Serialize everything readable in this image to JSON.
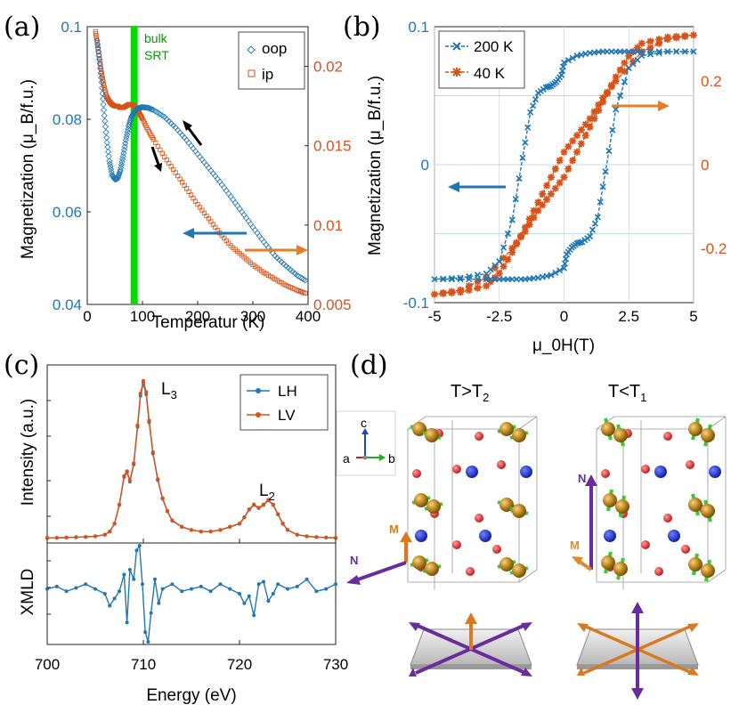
{
  "colors": {
    "blue": "#1f77b4",
    "orange": "#d95319",
    "green": "#00cc00",
    "purple": "#6a2c9c",
    "atom_brown": "#b8860b",
    "atom_red": "#e02020",
    "atom_blue": "#1a2fd0",
    "arrow_green": "#33cc33"
  },
  "panels": {
    "a": {
      "label": "(a)"
    },
    "b": {
      "label": "(b)"
    },
    "c": {
      "label": "(c)"
    },
    "d": {
      "label": "(d)"
    }
  },
  "chart_data": [
    {
      "id": "a",
      "type": "scatter",
      "xlabel": "Temperatur (K)",
      "ylabel_left": "Magnetization (μ_B/f.u.)",
      "xlim": [
        0,
        400
      ],
      "ylim_left": [
        0.04,
        0.1
      ],
      "ylim_right": [
        0.005,
        0.0225
      ],
      "xticks": [
        "0",
        "100",
        "200",
        "300",
        "400"
      ],
      "yticks_left": [
        "0.04",
        "0.06",
        "0.08",
        "0.1"
      ],
      "yticks_right": [
        "0.005",
        "0.01",
        "0.015",
        "0.02"
      ],
      "annotation": [
        "bulk",
        "SRT"
      ],
      "srt_temperature": 85,
      "legend": [
        "oop",
        "ip"
      ],
      "series": [
        {
          "name": "oop",
          "axis": "left",
          "x": [
            18,
            22,
            26,
            30,
            35,
            40,
            45,
            50,
            55,
            60,
            65,
            70,
            75,
            80,
            85,
            90,
            95,
            100,
            110,
            120,
            140,
            160,
            180,
            200,
            220,
            240,
            260,
            280,
            300,
            320,
            340,
            360,
            380,
            395
          ],
          "y": [
            0.097,
            0.093,
            0.088,
            0.082,
            0.076,
            0.071,
            0.068,
            0.067,
            0.0672,
            0.069,
            0.072,
            0.0755,
            0.0785,
            0.0805,
            0.0815,
            0.0822,
            0.0825,
            0.0826,
            0.0825,
            0.082,
            0.0805,
            0.0782,
            0.0755,
            0.0725,
            0.0695,
            0.0665,
            0.0633,
            0.06,
            0.0567,
            0.0535,
            0.0505,
            0.0483,
            0.0463,
            0.0452
          ]
        },
        {
          "name": "ip",
          "axis": "right",
          "x": [
            15,
            18,
            22,
            26,
            30,
            35,
            40,
            45,
            50,
            55,
            60,
            65,
            70,
            75,
            80,
            85,
            90,
            95,
            100,
            110,
            120,
            140,
            160,
            180,
            200,
            220,
            240,
            260,
            280,
            300,
            320,
            340,
            360,
            380,
            395
          ],
          "y": [
            0.0222,
            0.0215,
            0.0205,
            0.0196,
            0.0188,
            0.0181,
            0.0178,
            0.0176,
            0.0175,
            0.0175,
            0.0174,
            0.0174,
            0.0175,
            0.0176,
            0.0176,
            0.0175,
            0.0173,
            0.017,
            0.0167,
            0.016,
            0.0154,
            0.0143,
            0.0133,
            0.0123,
            0.0113,
            0.0104,
            0.0095,
            0.0087,
            0.0081,
            0.0075,
            0.007,
            0.0066,
            0.0062,
            0.0059,
            0.0057
          ]
        }
      ]
    },
    {
      "id": "b",
      "type": "line",
      "xlabel": "μ_0H(T)",
      "ylabel_left": "Magnetization (μ_B/f.u.)",
      "xlim": [
        -5,
        5
      ],
      "ylim_left": [
        -0.1,
        0.1
      ],
      "ylim_right": [
        -0.33,
        0.33
      ],
      "xticks": [
        "-5",
        "-2.5",
        "0",
        "2.5",
        "5"
      ],
      "yticks_left": [
        "-0.1",
        "0",
        "0.1"
      ],
      "yticks_right": [
        "-0.2",
        "0",
        "0.2"
      ],
      "legend": [
        "200 K",
        "40 K"
      ],
      "series": [
        {
          "name": "200 K",
          "axis": "left",
          "branch_up": {
            "x": [
              -5,
              -4,
              -3,
              -2.5,
              -2,
              -1.5,
              -1,
              -0.5,
              0,
              0.1,
              0.3,
              0.5,
              0.7,
              1,
              1.3,
              1.6,
              2,
              2.5,
              3,
              4,
              5
            ],
            "y": [
              -0.083,
              -0.083,
              -0.083,
              -0.083,
              -0.083,
              -0.083,
              -0.082,
              -0.08,
              -0.075,
              -0.065,
              -0.06,
              -0.057,
              -0.056,
              -0.052,
              -0.038,
              -0.005,
              0.04,
              0.07,
              0.079,
              0.082,
              0.082
            ]
          },
          "branch_down": {
            "x": [
              5,
              4,
              3,
              2.5,
              2,
              1.5,
              1,
              0.5,
              0,
              -0.1,
              -0.3,
              -0.5,
              -0.7,
              -1,
              -1.3,
              -1.6,
              -2,
              -2.5,
              -3,
              -4,
              -5
            ],
            "y": [
              0.082,
              0.082,
              0.082,
              0.082,
              0.082,
              0.082,
              0.081,
              0.079,
              0.074,
              0.065,
              0.06,
              0.057,
              0.056,
              0.052,
              0.038,
              0.005,
              -0.04,
              -0.07,
              -0.079,
              -0.082,
              -0.083
            ]
          }
        },
        {
          "name": "40 K",
          "axis": "right",
          "branch_up": {
            "x": [
              -5,
              -4,
              -3,
              -2,
              -1.5,
              -1,
              -0.5,
              0,
              0.5,
              1,
              1.5,
              2,
              2.5,
              3,
              4,
              5
            ],
            "y": [
              -0.31,
              -0.3,
              -0.27,
              -0.2,
              -0.16,
              -0.11,
              -0.07,
              -0.03,
              0.03,
              0.09,
              0.15,
              0.21,
              0.26,
              0.29,
              0.305,
              0.31
            ]
          },
          "branch_down": {
            "x": [
              5,
              4,
              3,
              2,
              1.5,
              1,
              0.5,
              0,
              -0.5,
              -1,
              -1.5,
              -2,
              -2.5,
              -3,
              -4,
              -5
            ],
            "y": [
              0.31,
              0.3,
              0.27,
              0.2,
              0.16,
              0.11,
              0.07,
              0.03,
              -0.03,
              -0.09,
              -0.15,
              -0.21,
              -0.26,
              -0.29,
              -0.305,
              -0.31
            ]
          }
        }
      ]
    },
    {
      "id": "c",
      "type": "line",
      "xlabel": "Energy (eV)",
      "ylabel_top": "Intensity (a.u.)",
      "ylabel_bottom": "XMLD",
      "xlim": [
        700,
        730
      ],
      "xticks": [
        "700",
        "710",
        "720",
        "730"
      ],
      "peak_labels": [
        {
          "text": "L",
          "sub": "3",
          "x": 710.1
        },
        {
          "text": "L",
          "sub": "2",
          "x": 722.5
        }
      ],
      "legend": [
        "LH",
        "LV"
      ],
      "intensity": {
        "x": [
          700,
          701,
          702,
          703,
          704,
          705,
          706,
          706.5,
          707,
          707.5,
          708,
          708.3,
          708.6,
          709,
          709.4,
          709.7,
          710,
          710.3,
          710.6,
          711,
          711.5,
          712,
          712.5,
          713,
          714,
          715,
          716,
          717,
          718,
          719,
          720,
          720.5,
          721,
          721.5,
          722,
          722.5,
          723,
          723.5,
          724,
          724.5,
          725,
          726,
          727,
          728,
          729,
          730
        ],
        "y": [
          0.01,
          0.01,
          0.012,
          0.014,
          0.016,
          0.02,
          0.03,
          0.05,
          0.1,
          0.22,
          0.4,
          0.43,
          0.37,
          0.48,
          0.72,
          0.92,
          1.0,
          0.93,
          0.75,
          0.55,
          0.38,
          0.26,
          0.18,
          0.12,
          0.08,
          0.06,
          0.05,
          0.05,
          0.06,
          0.08,
          0.1,
          0.14,
          0.19,
          0.22,
          0.2,
          0.22,
          0.25,
          0.22,
          0.16,
          0.1,
          0.06,
          0.03,
          0.02,
          0.015,
          0.012,
          0.01
        ]
      },
      "xmld": {
        "x": [
          700,
          701,
          702,
          703,
          704,
          705,
          706,
          706.5,
          707,
          707.5,
          708,
          708.3,
          708.6,
          709,
          709.3,
          709.6,
          709.9,
          710.2,
          710.5,
          710.8,
          711.2,
          711.6,
          712,
          713,
          714,
          715,
          716,
          717,
          718,
          719,
          720,
          720.5,
          721,
          721.5,
          722,
          722.5,
          723,
          723.5,
          724,
          725,
          726,
          727,
          728,
          729,
          730
        ],
        "y": [
          0.1,
          0.15,
          0.05,
          0.12,
          0.2,
          0.1,
          0.0,
          -0.25,
          -0.1,
          0.05,
          0.4,
          -0.6,
          0.5,
          0.3,
          0.9,
          1.0,
          0.2,
          -0.8,
          -1.0,
          -0.4,
          0.3,
          -0.2,
          0.1,
          0.2,
          0.05,
          0.1,
          0.15,
          0.05,
          0.2,
          0.1,
          0.0,
          -0.2,
          -0.05,
          -0.45,
          0.2,
          0.25,
          -0.15,
          0.0,
          0.2,
          0.1,
          0.15,
          0.3,
          0.05,
          0.1,
          0.2
        ]
      }
    }
  ],
  "panel_d": {
    "left_title": {
      "text": "T>T",
      "sub": "2"
    },
    "right_title": {
      "text": "T<T",
      "sub": "1"
    },
    "axes": {
      "a": "a",
      "b": "b",
      "c": "c"
    },
    "vector_labels": {
      "M": "M",
      "N": "N"
    }
  }
}
